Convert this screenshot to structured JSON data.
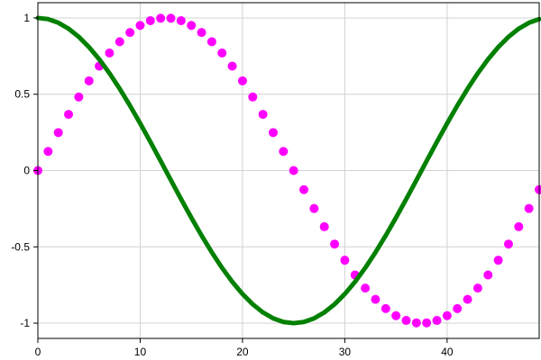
{
  "chart_data": {
    "type": "line",
    "title": "",
    "xlabel": "",
    "ylabel": "",
    "xlim": [
      0,
      49
    ],
    "ylim": [
      -1.1,
      1.1
    ],
    "grid": true,
    "legend": "none",
    "x_ticks": [
      {
        "value": 0,
        "label": "0"
      },
      {
        "value": 10,
        "label": "10"
      },
      {
        "value": 20,
        "label": "20"
      },
      {
        "value": 30,
        "label": "30"
      },
      {
        "value": 40,
        "label": "40"
      }
    ],
    "y_ticks": [
      {
        "value": 1,
        "label": "1"
      },
      {
        "value": 0.5,
        "label": "0.5"
      },
      {
        "value": 0,
        "label": "0"
      },
      {
        "value": -0.5,
        "label": "-0.5"
      },
      {
        "value": -1,
        "label": "-1"
      }
    ],
    "x": [
      0,
      1,
      2,
      3,
      4,
      5,
      6,
      7,
      8,
      9,
      10,
      11,
      12,
      13,
      14,
      15,
      16,
      17,
      18,
      19,
      20,
      21,
      22,
      23,
      24,
      25,
      26,
      27,
      28,
      29,
      30,
      31,
      32,
      33,
      34,
      35,
      36,
      37,
      38,
      39,
      40,
      41,
      42,
      43,
      44,
      45,
      46,
      47,
      48,
      49
    ],
    "series": [
      {
        "style": "markers",
        "color": "#ff00ff",
        "values": [
          0,
          0.1253,
          0.2487,
          0.3681,
          0.4818,
          0.5878,
          0.6845,
          0.7705,
          0.8443,
          0.9048,
          0.9511,
          0.9823,
          0.998,
          0.998,
          0.9823,
          0.9511,
          0.9048,
          0.8443,
          0.7705,
          0.6845,
          0.5878,
          0.4818,
          0.3681,
          0.2487,
          0.1253,
          0,
          -0.1253,
          -0.2487,
          -0.3681,
          -0.4818,
          -0.5878,
          -0.6845,
          -0.7705,
          -0.8443,
          -0.9048,
          -0.9511,
          -0.9823,
          -0.998,
          -0.998,
          -0.9823,
          -0.9511,
          -0.9048,
          -0.8443,
          -0.7705,
          -0.6845,
          -0.5878,
          -0.4818,
          -0.3681,
          -0.2487,
          -0.1253
        ]
      },
      {
        "style": "line",
        "color": "#008000",
        "values": [
          1,
          0.9921,
          0.9686,
          0.9298,
          0.8763,
          0.809,
          0.729,
          0.6374,
          0.5358,
          0.4258,
          0.309,
          0.1874,
          0.0628,
          -0.0628,
          -0.1874,
          -0.309,
          -0.4258,
          -0.5358,
          -0.6374,
          -0.729,
          -0.809,
          -0.8763,
          -0.9298,
          -0.9686,
          -0.9921,
          -1,
          -0.9921,
          -0.9686,
          -0.9298,
          -0.8763,
          -0.809,
          -0.729,
          -0.6374,
          -0.5358,
          -0.4258,
          -0.309,
          -0.1874,
          -0.0628,
          0.0628,
          0.1874,
          0.309,
          0.4258,
          0.5358,
          0.6374,
          0.729,
          0.809,
          0.8763,
          0.9298,
          0.9686,
          0.9921
        ]
      }
    ]
  }
}
